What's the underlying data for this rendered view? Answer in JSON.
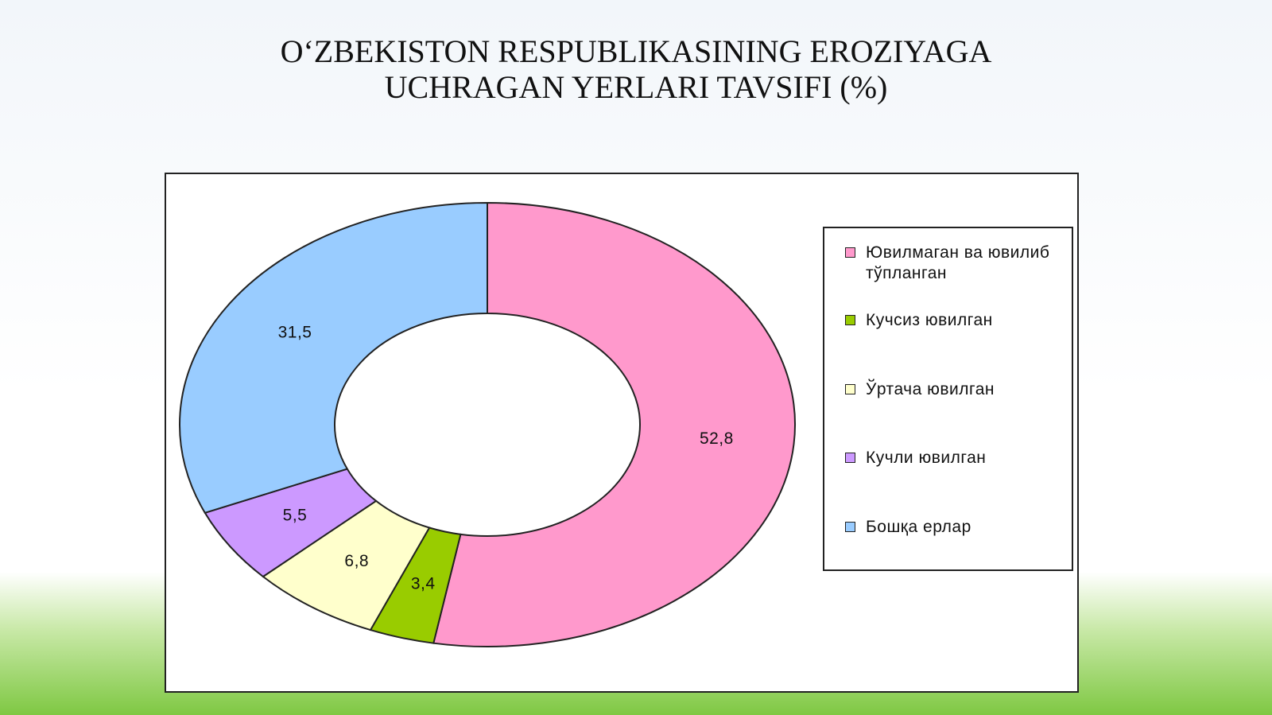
{
  "chart_data": {
    "type": "donut",
    "title": "O‘ZBEKISTON RESPUBLIKASINING EROZIYAGA UCHRAGAN YERLARI TAVSIFI (%)",
    "categories": [
      "Ювилмаган ва ювилиб тўпланган",
      "Кучсиз ювилган",
      "Ўртача ювилган",
      "Кучли ювилган",
      "Бошқа ерлар"
    ],
    "values": [
      52.8,
      3.4,
      6.8,
      5.5,
      31.5
    ],
    "value_labels": [
      "52,8",
      "3,4",
      "6,8",
      "5,5",
      "31,5"
    ],
    "colors": [
      "#ff99cc",
      "#99cc00",
      "#ffffcc",
      "#cc99ff",
      "#99ccff"
    ],
    "legend": "right"
  }
}
